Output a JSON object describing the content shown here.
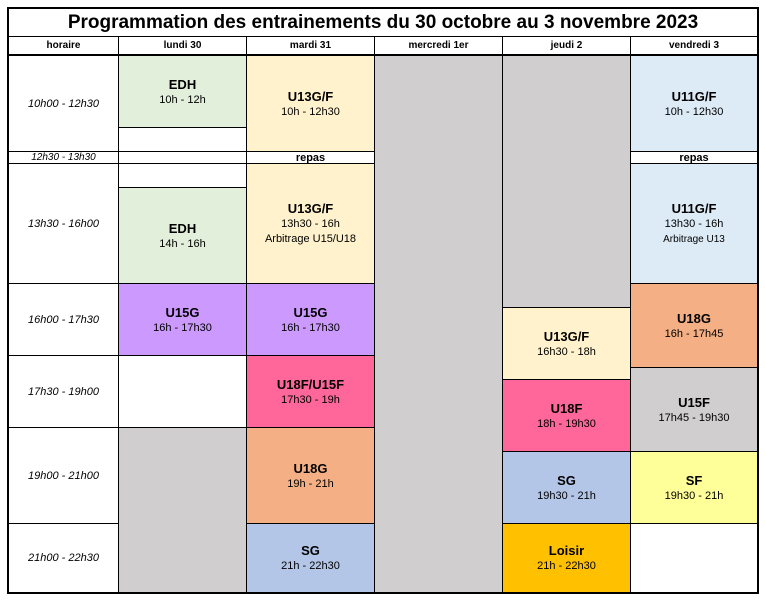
{
  "title": "Programmation des entrainements du 30 octobre au 3 novembre 2023",
  "headers": [
    "horaire",
    "lundi 30",
    "mardi 31",
    "mercredi 1er",
    "jeudi 2",
    "vendredi 3"
  ],
  "time_slots": [
    "10h00 - 12h30",
    "12h30 - 13h30",
    "13h30 - 16h00",
    "16h00 - 17h30",
    "17h30 - 19h00",
    "19h00 - 21h00",
    "21h00 - 22h30"
  ],
  "sessions": {
    "lun_edh_am": {
      "name": "EDH",
      "time": "10h - 12h"
    },
    "lun_edh_pm": {
      "name": "EDH",
      "time": "14h - 16h"
    },
    "lun_u15g": {
      "name": "U15G",
      "time": "16h - 17h30"
    },
    "mar_u13_am": {
      "name": "U13G/F",
      "time": "10h - 12h30"
    },
    "mar_u13_pm": {
      "name": "U13G/F",
      "time": "13h30 - 16h",
      "extra": "Arbitrage U15/U18"
    },
    "mar_u15g": {
      "name": "U15G",
      "time": "16h - 17h30"
    },
    "mar_u18f": {
      "name": "U18F/U15F",
      "time": "17h30 - 19h"
    },
    "mar_u18g": {
      "name": "U18G",
      "time": "19h - 21h"
    },
    "mar_sg": {
      "name": "SG",
      "time": "21h - 22h30"
    },
    "jeu_u13": {
      "name": "U13G/F",
      "time": "16h30 - 18h"
    },
    "jeu_u18f": {
      "name": "U18F",
      "time": "18h - 19h30"
    },
    "jeu_sg": {
      "name": "SG",
      "time": "19h30 - 21h"
    },
    "jeu_loisir": {
      "name": "Loisir",
      "time": "21h - 22h30"
    },
    "ven_u11_am": {
      "name": "U11G/F",
      "time": "10h - 12h30"
    },
    "ven_u11_pm": {
      "name": "U11G/F",
      "time": "13h30 - 16h",
      "extra": "Arbitrage U13"
    },
    "ven_u18g": {
      "name": "U18G",
      "time": "16h - 17h45"
    },
    "ven_u15f": {
      "name": "U15F",
      "time": "17h45 - 19h30"
    },
    "ven_sf": {
      "name": "SF",
      "time": "19h30 - 21h"
    }
  },
  "repas": {
    "mardi": "repas",
    "vendredi": "repas"
  },
  "colors": {
    "edh": "#e2efda",
    "u13": "#fff2cc",
    "u11": "#ddebf7",
    "u15g": "#cc99ff",
    "u18f": "#ff6699",
    "u18g": "#f4b084",
    "sg": "#b4c6e7",
    "loisir": "#ffc000",
    "u15f": "#d0cece",
    "sf": "#ffff99",
    "closed": "#d0cece"
  }
}
